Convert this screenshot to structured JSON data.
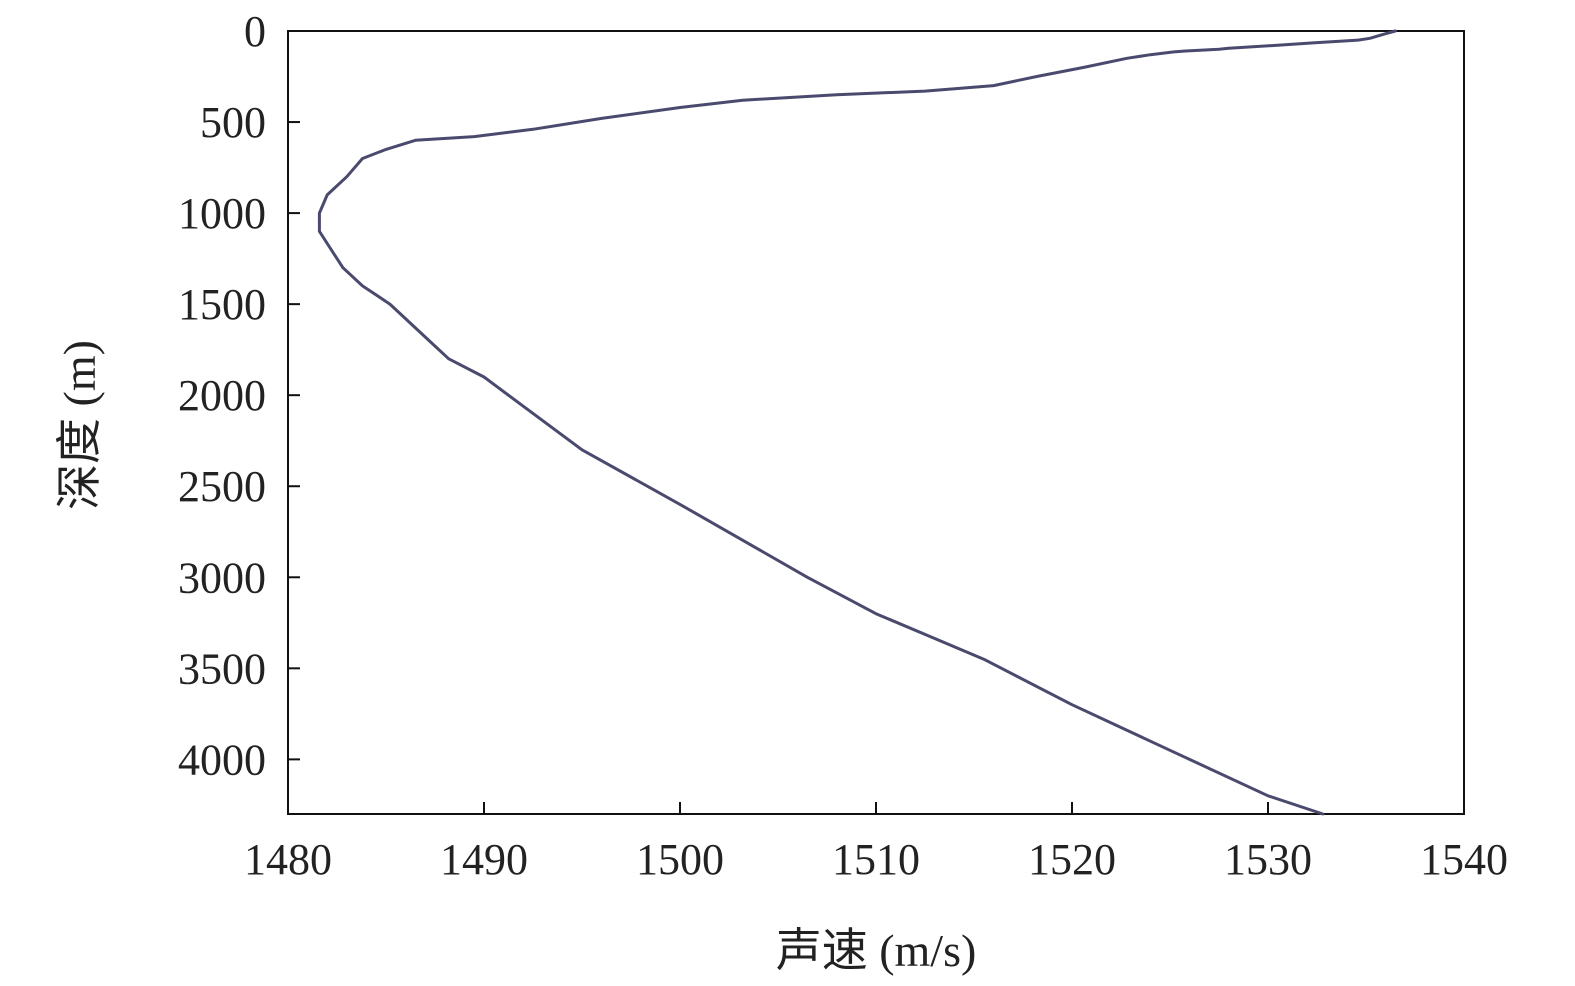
{
  "chart_data": {
    "type": "line",
    "xlabel": "声速 (m/s)",
    "ylabel": "深度 (m)",
    "xlim": [
      1480,
      1540
    ],
    "ylim": [
      0,
      4300
    ],
    "y_inverted": true,
    "x_ticks": [
      1480,
      1490,
      1500,
      1510,
      1520,
      1530,
      1540
    ],
    "y_ticks": [
      0,
      500,
      1000,
      1500,
      2000,
      2500,
      3000,
      3500,
      4000
    ],
    "grid": false,
    "line_color": "#4a4a6e",
    "series": [
      {
        "x": [
          1536.5,
          1536.0,
          1535.2,
          1534.6,
          1532.4,
          1530.2,
          1528.0,
          1527.5,
          1525.8,
          1525.2,
          1524.0,
          1522.8,
          1520.6,
          1518.2,
          1516.0,
          1512.5,
          1508.0,
          1503.2,
          1500.0,
          1496.0,
          1492.5,
          1489.5,
          1486.5,
          1485.0,
          1483.8,
          1483.0,
          1482.0,
          1481.6,
          1481.6,
          1482.2,
          1482.8,
          1483.8,
          1485.2,
          1487.2,
          1488.2,
          1490.0,
          1492.5,
          1495.0,
          1500.0,
          1506.5,
          1510.0,
          1515.5,
          1520.0,
          1525.0,
          1530.0,
          1532.8
        ],
        "y": [
          0,
          15,
          40,
          50,
          65,
          80,
          95,
          100,
          110,
          115,
          130,
          150,
          200,
          250,
          300,
          330,
          350,
          380,
          420,
          480,
          540,
          580,
          600,
          650,
          700,
          800,
          900,
          1000,
          1100,
          1200,
          1300,
          1400,
          1500,
          1700,
          1800,
          1900,
          2100,
          2300,
          2600,
          3000,
          3200,
          3450,
          3700,
          3950,
          4200,
          4300
        ]
      }
    ]
  }
}
